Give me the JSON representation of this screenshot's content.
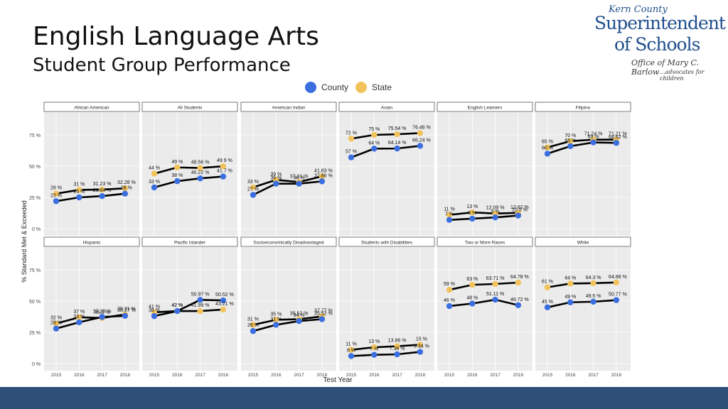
{
  "slide": {
    "title": "English Language Arts",
    "subtitle": "Student Group Performance"
  },
  "logo": {
    "line1": "Kern County",
    "line2": "Superintendent",
    "line3": "of Schools",
    "line4": "Office of Mary C. Barlow",
    "line5": "...advocates for children"
  },
  "colors": {
    "county": "#3b6fe0",
    "state": "#f2c35c",
    "line": "#000000",
    "panel_bg": "#ebebeb",
    "strip_bg": "#ffffff",
    "bottom_bar": "#2e4f78"
  },
  "chart_data": {
    "type": "line",
    "ylabel": "% Standard Met & Exceeded",
    "xlabel": "Test Year",
    "x": [
      "2015",
      "2016",
      "2017",
      "2018"
    ],
    "ylim": [
      0,
      100
    ],
    "yticks": [
      "0 %",
      "25 %",
      "50 %",
      "75 %"
    ],
    "legend": {
      "position": "top",
      "entries": [
        "County",
        "State"
      ]
    },
    "panels": [
      {
        "name": "African American",
        "county": [
          22,
          25,
          26.04,
          28
        ],
        "state": [
          28,
          31,
          31.23,
          32.28
        ],
        "county_labels": [
          "22 %",
          "25 %",
          "26.04 %",
          "28 %"
        ],
        "state_labels": [
          "28 %",
          "31 %",
          "31.23 %",
          "32.28 %"
        ]
      },
      {
        "name": "All Students",
        "county": [
          33,
          38,
          40.22,
          41.7
        ],
        "state": [
          44,
          49,
          48.56,
          49.9
        ],
        "county_labels": [
          "33 %",
          "38 %",
          "40.22 %",
          "41.7 %"
        ],
        "state_labels": [
          "44 %",
          "49 %",
          "48.56 %",
          "49.9 %"
        ]
      },
      {
        "name": "American Indian",
        "county": [
          27,
          36,
          36,
          37.86
        ],
        "state": [
          33,
          39,
          37.31,
          41.83
        ],
        "county_labels": [
          "27 %",
          "36 %",
          "36 %",
          "37.86 %"
        ],
        "state_labels": [
          "33 %",
          "39 %",
          "37.31 %",
          "41.83 %"
        ]
      },
      {
        "name": "Asian",
        "county": [
          57,
          64,
          64.14,
          66.24
        ],
        "state": [
          72,
          75,
          75.54,
          76.46
        ],
        "county_labels": [
          "57 %",
          "64 %",
          "64.14 %",
          "66.24 %"
        ],
        "state_labels": [
          "72 %",
          "75 %",
          "75.54 %",
          "76.46 %"
        ]
      },
      {
        "name": "English Learners",
        "county": [
          7,
          8,
          9,
          10.5
        ],
        "state": [
          11,
          13,
          12.09,
          12.62
        ],
        "county_labels": [
          "7 %",
          "8 %",
          "9 %",
          "10.5 %"
        ],
        "state_labels": [
          "11 %",
          "13 %",
          "12.09 %",
          "12.62 %"
        ]
      },
      {
        "name": "Filipino",
        "county": [
          60,
          66,
          69,
          68.62
        ],
        "state": [
          65,
          70,
          71.24,
          71.21
        ],
        "county_labels": [
          "60 %",
          "66 %",
          "69 %",
          "68.62 %"
        ],
        "state_labels": [
          "65 %",
          "70 %",
          "71.24 %",
          "71.21 %"
        ]
      },
      {
        "name": "Hispanic",
        "county": [
          28,
          33,
          37.28,
          38.17
        ],
        "state": [
          32,
          37,
          36.5,
          39.31
        ],
        "county_labels": [
          "28 %",
          "33 %",
          "37.28 %",
          "38.17 %"
        ],
        "state_labels": [
          "32 %",
          "37 %",
          "36.5 %",
          "39.31 %"
        ]
      },
      {
        "name": "Pacific Islander",
        "county": [
          38,
          42,
          50.97,
          50.52
        ],
        "state": [
          41,
          42,
          41.99,
          43.21
        ],
        "county_labels": [
          "38 %",
          "42 %",
          "50.97 %",
          "50.52 %"
        ],
        "state_labels": [
          "41 %",
          "42 %",
          "41.99 %",
          "43.21 %"
        ]
      },
      {
        "name": "Socioeconomically Disadvantaged",
        "county": [
          26,
          31,
          34,
          35.52
        ],
        "state": [
          31,
          35,
          35.52,
          37.77
        ],
        "county_labels": [
          "26 %",
          "31 %",
          "34 %",
          "35.52 %"
        ],
        "state_labels": [
          "31 %",
          "35 %",
          "35.52 %",
          "37.77 %"
        ]
      },
      {
        "name": "Students with Disabilities",
        "county": [
          6,
          7,
          7.38,
          9.34
        ],
        "state": [
          11,
          13,
          13.86,
          15
        ],
        "county_labels": [
          "6 %",
          "7 %",
          "7.38 %",
          "9.34 %"
        ],
        "state_labels": [
          "11 %",
          "13 %",
          "13.86 %",
          "15 %"
        ]
      },
      {
        "name": "Two or More Races",
        "county": [
          46,
          48,
          51.11,
          46.72
        ],
        "state": [
          59,
          63,
          63.71,
          64.78
        ],
        "county_labels": [
          "46 %",
          "48 %",
          "51.11 %",
          "46.72 %"
        ],
        "state_labels": [
          "59 %",
          "63 %",
          "63.71 %",
          "64.78 %"
        ]
      },
      {
        "name": "White",
        "county": [
          45,
          49,
          49.5,
          50.77
        ],
        "state": [
          61,
          64,
          64.3,
          64.88
        ],
        "county_labels": [
          "45 %",
          "49 %",
          "49.5 %",
          "50.77 %"
        ],
        "state_labels": [
          "61 %",
          "64 %",
          "64.3 %",
          "64.88 %"
        ]
      }
    ]
  }
}
